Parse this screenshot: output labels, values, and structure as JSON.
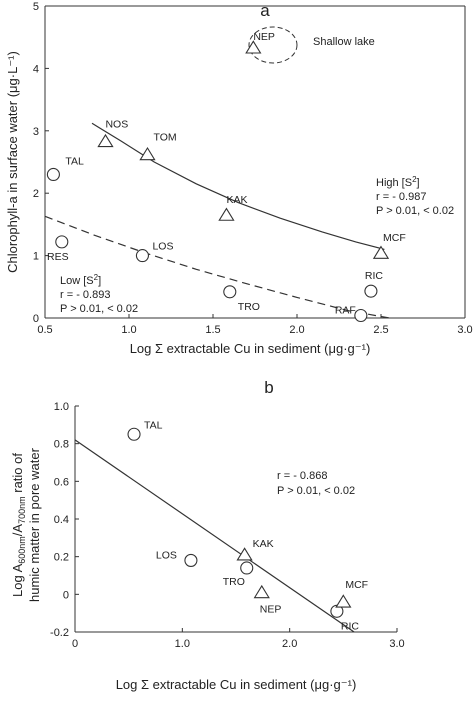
{
  "chart_data": [
    {
      "type": "scatter",
      "panel": "a",
      "xlabel": "Log Σ extractable Cu in sediment (μg·g⁻¹)",
      "ylabel": "Chlorophyll-a in surface water (μg·L⁻¹)",
      "xlim": [
        0.5,
        3.0
      ],
      "ylim": [
        0,
        5
      ],
      "xticks": [
        0.5,
        1.0,
        1.5,
        2.0,
        2.5,
        3.0
      ],
      "yticks": [
        0,
        1,
        2,
        3,
        4,
        5
      ],
      "x_tick_labels": [
        "0.5",
        "1.0",
        "1.5",
        "2.0",
        "2.5",
        "3.0"
      ],
      "y_tick_labels": [
        "0",
        "1",
        "2",
        "3",
        "4",
        "5"
      ],
      "grid": false,
      "series": [
        {
          "name": "High [S²]",
          "marker": "triangle",
          "points": [
            {
              "label": "NOS",
              "x": 0.86,
              "y": 2.83
            },
            {
              "label": "TOM",
              "x": 1.11,
              "y": 2.62
            },
            {
              "label": "KAK",
              "x": 1.58,
              "y": 1.65
            },
            {
              "label": "MCF",
              "x": 2.5,
              "y": 1.04
            }
          ],
          "fit": {
            "style": "solid",
            "x": [
              0.78,
              0.95,
              1.15,
              1.4,
              1.65,
              1.9,
              2.15,
              2.35,
              2.52
            ],
            "y": [
              3.12,
              2.84,
              2.5,
              2.15,
              1.85,
              1.6,
              1.38,
              1.22,
              1.1
            ]
          },
          "stats": {
            "heading": "High [S",
            "heading_sup": "2",
            "heading_tail": "]",
            "r": "r = - 0.987",
            "p": "P > 0.01, < 0.02"
          }
        },
        {
          "name": "Low [S²]",
          "marker": "circle",
          "points": [
            {
              "label": "TAL",
              "x": 0.55,
              "y": 2.3
            },
            {
              "label": "RES",
              "x": 0.6,
              "y": 1.22
            },
            {
              "label": "LOS",
              "x": 1.08,
              "y": 1.0
            },
            {
              "label": "TRO",
              "x": 1.6,
              "y": 0.42
            },
            {
              "label": "RIC",
              "x": 2.44,
              "y": 0.43
            },
            {
              "label": "RAF",
              "x": 2.38,
              "y": 0.04
            }
          ],
          "fit": {
            "style": "dashed",
            "x": [
              0.5,
              0.8,
              1.1,
              1.4,
              1.7,
              2.0,
              2.3,
              2.55
            ],
            "y": [
              1.63,
              1.32,
              1.04,
              0.78,
              0.55,
              0.33,
              0.12,
              0.0
            ]
          },
          "stats": {
            "heading": "Low [S",
            "heading_sup": "2",
            "heading_tail": "]",
            "r": "r = - 0.893",
            "p": "P > 0.01, < 0.02"
          }
        },
        {
          "name": "Shallow lake",
          "marker": "triangle",
          "points": [
            {
              "label": "NEP",
              "x": 1.74,
              "y": 4.33
            }
          ]
        }
      ],
      "annotations": {
        "shallow_lake": "Shallow lake"
      }
    },
    {
      "type": "scatter",
      "panel": "b",
      "xlabel": "Log Σ extractable Cu in sediment (μg·g⁻¹)",
      "ylabel": "Log A600nm/A700nm ratio of humic matter in pore water",
      "ylabel_lines": [
        "Log A",
        "600nm",
        "/A",
        "700nm",
        " ratio of",
        "humic matter in pore water"
      ],
      "xlim": [
        0,
        3.0
      ],
      "ylim": [
        -0.2,
        1.0
      ],
      "xticks": [
        0,
        1.0,
        2.0,
        3.0
      ],
      "yticks": [
        -0.2,
        0,
        0.2,
        0.4,
        0.6,
        0.8,
        1.0
      ],
      "x_tick_labels": [
        "0",
        "1.0",
        "2.0",
        "3.0"
      ],
      "y_tick_labels": [
        "-0.2",
        "0",
        "0.2",
        "0.4",
        "0.6",
        "0.8",
        "1.0"
      ],
      "grid": false,
      "series": [
        {
          "marker": "circle",
          "points": [
            {
              "label": "TAL",
              "x": 0.55,
              "y": 0.85
            },
            {
              "label": "LOS",
              "x": 1.08,
              "y": 0.18
            },
            {
              "label": "TRO",
              "x": 1.6,
              "y": 0.14
            },
            {
              "label": "RIC",
              "x": 2.44,
              "y": -0.09
            }
          ]
        },
        {
          "marker": "triangle",
          "points": [
            {
              "label": "KAK",
              "x": 1.58,
              "y": 0.21
            },
            {
              "label": "NEP",
              "x": 1.74,
              "y": 0.01
            },
            {
              "label": "MCF",
              "x": 2.5,
              "y": -0.04
            }
          ]
        }
      ],
      "fit": {
        "style": "solid",
        "x": [
          0.0,
          2.6
        ],
        "y": [
          0.82,
          -0.2
        ]
      },
      "stats": {
        "r": "r = - 0.868",
        "p": "P > 0.01, < 0.02"
      }
    }
  ]
}
